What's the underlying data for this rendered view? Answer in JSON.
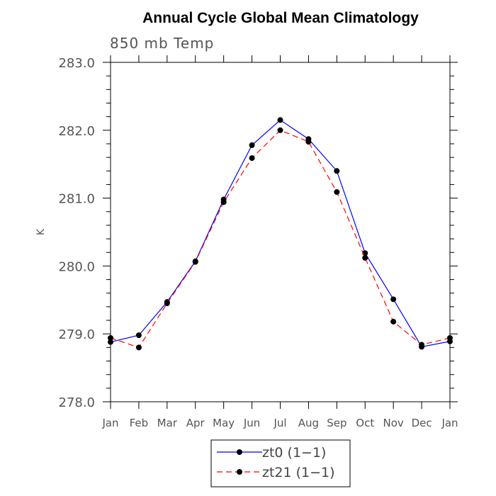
{
  "chart_data": {
    "type": "line",
    "title": "Annual Cycle Global Mean Climatology",
    "subtitle": "850 mb Temp",
    "xlabel": "",
    "ylabel": "K",
    "categories": [
      "Jan",
      "Feb",
      "Mar",
      "Apr",
      "May",
      "Jun",
      "Jul",
      "Aug",
      "Sep",
      "Oct",
      "Nov",
      "Dec",
      "Jan"
    ],
    "ylim": [
      278.0,
      283.0
    ],
    "yticks": [
      "278.0",
      "279.0",
      "280.0",
      "281.0",
      "282.0",
      "283.0"
    ],
    "grid": false,
    "legend_position": "bottom-center",
    "series": [
      {
        "name": "zt0 (1−1)",
        "color": "#0000ff",
        "dash": "solid",
        "marker": "circle",
        "values": [
          278.88,
          278.98,
          279.47,
          280.07,
          280.98,
          281.78,
          282.15,
          281.87,
          281.4,
          280.19,
          279.51,
          278.81,
          278.89
        ]
      },
      {
        "name": "zt21 (1−1)",
        "color": "#ff0000",
        "dash": "dashed",
        "marker": "circle",
        "values": [
          278.94,
          278.8,
          279.45,
          280.06,
          280.94,
          281.59,
          282.0,
          281.83,
          281.09,
          280.12,
          279.18,
          278.84,
          278.94
        ]
      }
    ]
  }
}
